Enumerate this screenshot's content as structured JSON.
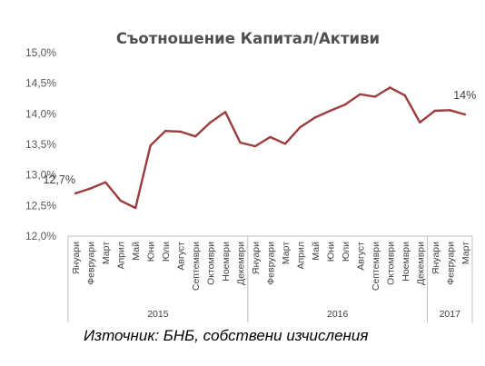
{
  "chart_data": {
    "type": "line",
    "title": "Съотношение Капитал/Активи",
    "xlabel": "",
    "ylabel": "",
    "ylim": [
      12.0,
      15.0
    ],
    "yticks": [
      "12,0%",
      "12,5%",
      "13,0%",
      "13,5%",
      "14,0%",
      "14,5%",
      "15,0%"
    ],
    "yticks_values": [
      12.0,
      12.5,
      13.0,
      13.5,
      14.0,
      14.5,
      15.0
    ],
    "grid": false,
    "legend": "none",
    "categories": [
      "Януари",
      "Февруари",
      "Март",
      "Април",
      "Май",
      "Юни",
      "Юли",
      "Август",
      "Септември",
      "Октомври",
      "Ноември",
      "Декември",
      "Януари",
      "Февруари",
      "Март",
      "Април",
      "Май",
      "Юни",
      "Юли",
      "Август",
      "Септември",
      "Октомври",
      "Ноември",
      "Декември",
      "Януари",
      "Февруари",
      "Март"
    ],
    "year_groups": [
      {
        "label": "2015",
        "count": 12
      },
      {
        "label": "2016",
        "count": 12
      },
      {
        "label": "2017",
        "count": 3
      }
    ],
    "series": [
      {
        "values": [
          12.7,
          12.78,
          12.88,
          12.58,
          12.46,
          13.48,
          13.72,
          13.71,
          13.63,
          13.86,
          14.03,
          13.53,
          13.47,
          13.62,
          13.51,
          13.78,
          13.94,
          14.05,
          14.15,
          14.32,
          14.28,
          14.43,
          14.3,
          13.86,
          14.05,
          14.06,
          13.99
        ],
        "color": "#9b3d3d"
      }
    ],
    "data_labels": [
      {
        "index": 0,
        "text": "12,7%"
      },
      {
        "index": 26,
        "text": "14%"
      }
    ]
  },
  "source_note": "Източник: БНБ, собствени изчисления"
}
